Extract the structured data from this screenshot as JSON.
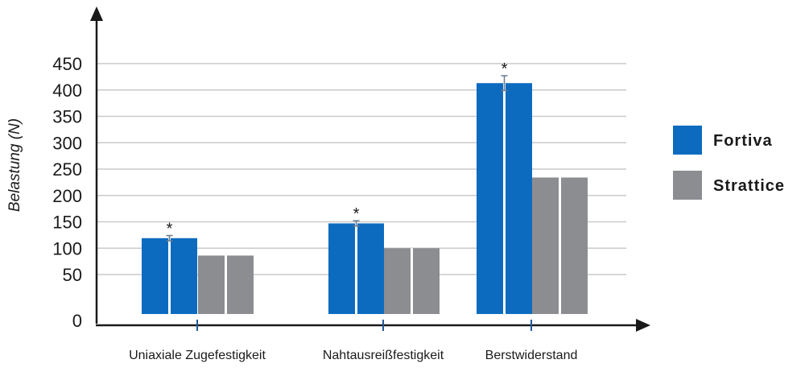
{
  "chart_data": {
    "type": "bar",
    "ylabel": "Belastung (N)",
    "xlabel": "",
    "ylim": [
      0,
      450
    ],
    "yticks": [
      0,
      50,
      100,
      150,
      200,
      250,
      300,
      350,
      400,
      450
    ],
    "grid": true,
    "legend_position": "right",
    "categories": [
      "Uniaxiale Zugefestigkeit",
      "Nahtausreißfestigkeit",
      "Berstwiderstand"
    ],
    "series": [
      {
        "name": "Fortiva",
        "color": "#0c6bbf",
        "values": [
          119,
          147,
          413
        ],
        "error": [
          5,
          5,
          14
        ]
      },
      {
        "name": "Strattice",
        "color": "#8b8d91",
        "values": [
          86,
          100,
          234
        ]
      }
    ],
    "annotations": [
      {
        "category": "Uniaxiale Zugefestigkeit",
        "series": "Fortiva",
        "text": "*"
      },
      {
        "category": "Nahtausreißfestigkeit",
        "series": "Fortiva",
        "text": "*"
      },
      {
        "category": "Berstwiderstand",
        "series": "Fortiva",
        "text": "*"
      }
    ]
  }
}
